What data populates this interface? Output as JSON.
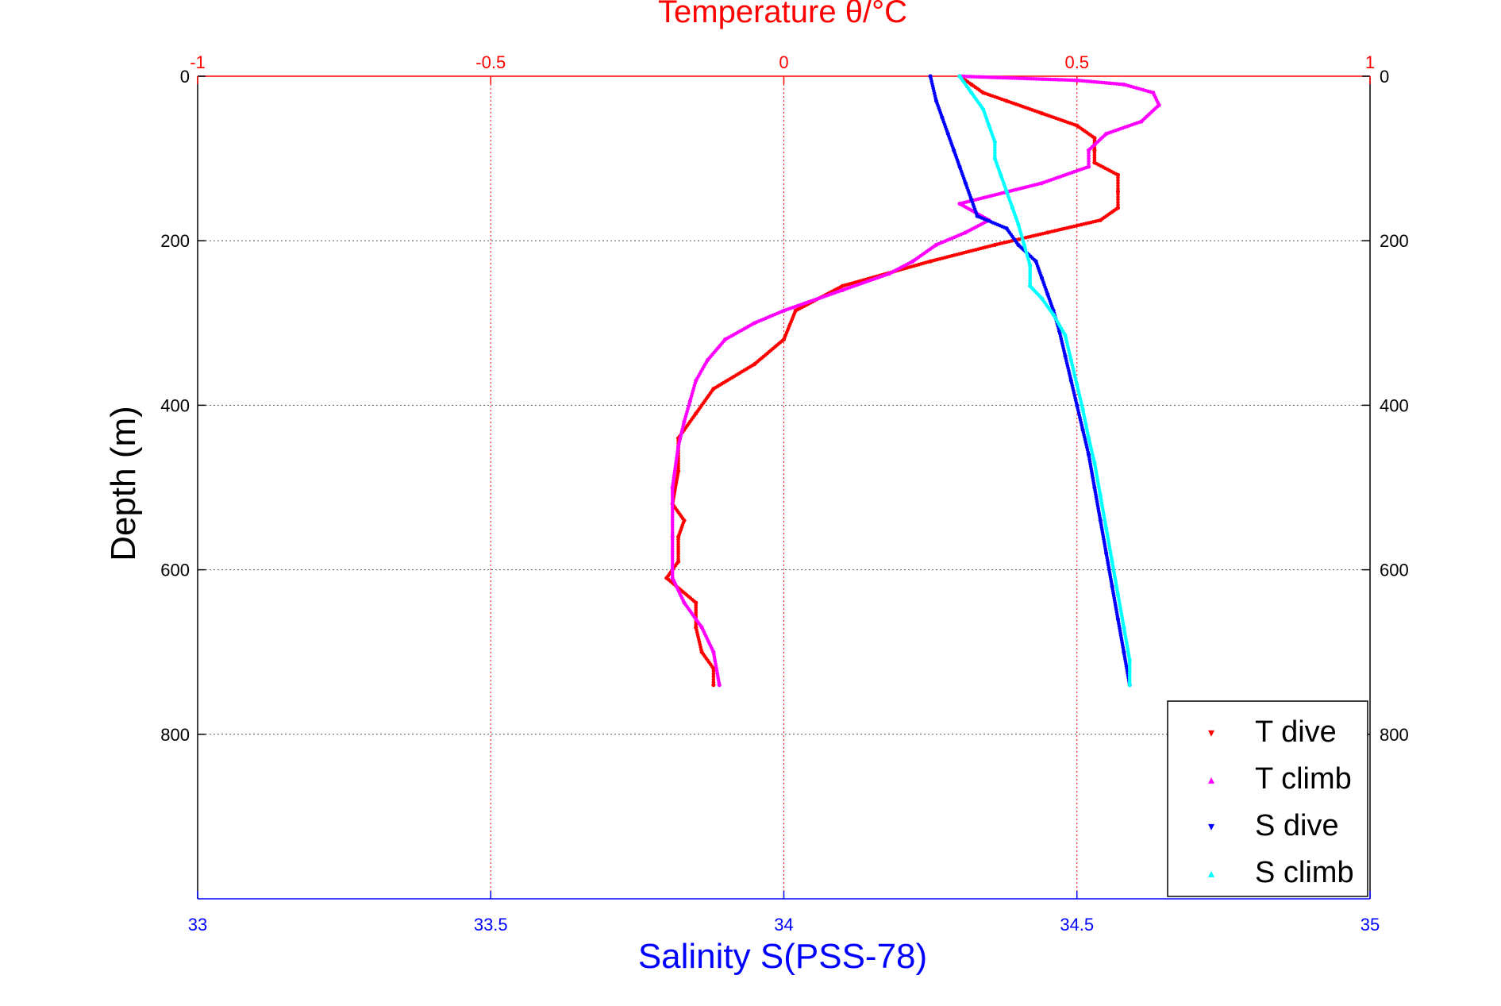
{
  "chart_data": {
    "type": "scatter",
    "title": "Temperature θ/°C",
    "xlabel": "Salinity S(PSS-78)",
    "ylabel": "Depth (m)",
    "grid": true,
    "legend_position": "bottom-right",
    "axes": {
      "depth": {
        "range": [
          0,
          1000
        ],
        "reversed": true,
        "ticks": [
          0,
          200,
          400,
          600,
          800
        ],
        "tick_labels": [
          "0",
          "200",
          "400",
          "600",
          "800"
        ]
      },
      "temperature": {
        "range": [
          -1,
          1
        ],
        "position": "top",
        "ticks": [
          -1,
          -0.5,
          0,
          0.5,
          1
        ],
        "tick_labels": [
          "-1",
          "-0.5",
          "0",
          "0.5",
          "1"
        ]
      },
      "salinity": {
        "range": [
          33,
          35
        ],
        "position": "bottom",
        "ticks": [
          33,
          33.5,
          34,
          34.5,
          35
        ],
        "tick_labels": [
          "33",
          "33.5",
          "34",
          "34.5",
          "35"
        ]
      }
    },
    "colors": {
      "temperature_axis": "#ff0000",
      "salinity_axis": "#0000ff",
      "frame": "#000000",
      "grid": "#555555"
    },
    "series": [
      {
        "name": "T dive",
        "axis": "temperature",
        "marker": "▾",
        "color": "#ff0000",
        "points": [
          [
            0.3,
            0
          ],
          [
            0.32,
            10
          ],
          [
            0.34,
            20
          ],
          [
            0.38,
            30
          ],
          [
            0.44,
            45
          ],
          [
            0.5,
            60
          ],
          [
            0.53,
            75
          ],
          [
            0.53,
            90
          ],
          [
            0.53,
            105
          ],
          [
            0.57,
            120
          ],
          [
            0.57,
            140
          ],
          [
            0.57,
            160
          ],
          [
            0.54,
            175
          ],
          [
            0.45,
            190
          ],
          [
            0.36,
            205
          ],
          [
            0.25,
            225
          ],
          [
            0.1,
            255
          ],
          [
            0.02,
            285
          ],
          [
            0.0,
            320
          ],
          [
            -0.05,
            350
          ],
          [
            -0.12,
            380
          ],
          [
            -0.15,
            410
          ],
          [
            -0.18,
            440
          ],
          [
            -0.18,
            480
          ],
          [
            -0.19,
            520
          ],
          [
            -0.17,
            540
          ],
          [
            -0.18,
            560
          ],
          [
            -0.18,
            590
          ],
          [
            -0.2,
            610
          ],
          [
            -0.15,
            640
          ],
          [
            -0.15,
            670
          ],
          [
            -0.14,
            700
          ],
          [
            -0.12,
            720
          ],
          [
            -0.12,
            740
          ]
        ]
      },
      {
        "name": "T climb",
        "axis": "temperature",
        "marker": "▴",
        "color": "#ff00ff",
        "points": [
          [
            0.3,
            0
          ],
          [
            0.5,
            5
          ],
          [
            0.58,
            10
          ],
          [
            0.63,
            20
          ],
          [
            0.64,
            35
          ],
          [
            0.61,
            55
          ],
          [
            0.55,
            70
          ],
          [
            0.52,
            90
          ],
          [
            0.52,
            110
          ],
          [
            0.44,
            130
          ],
          [
            0.3,
            155
          ],
          [
            0.35,
            175
          ],
          [
            0.31,
            190
          ],
          [
            0.26,
            205
          ],
          [
            0.22,
            225
          ],
          [
            0.18,
            240
          ],
          [
            0.1,
            260
          ],
          [
            0.0,
            285
          ],
          [
            -0.05,
            300
          ],
          [
            -0.1,
            320
          ],
          [
            -0.13,
            345
          ],
          [
            -0.15,
            370
          ],
          [
            -0.16,
            395
          ],
          [
            -0.17,
            420
          ],
          [
            -0.18,
            450
          ],
          [
            -0.19,
            500
          ],
          [
            -0.19,
            560
          ],
          [
            -0.19,
            610
          ],
          [
            -0.17,
            640
          ],
          [
            -0.14,
            670
          ],
          [
            -0.12,
            700
          ],
          [
            -0.11,
            740
          ]
        ]
      },
      {
        "name": "S dive",
        "axis": "salinity",
        "marker": "▾",
        "color": "#0000ff",
        "points": [
          [
            34.25,
            0
          ],
          [
            34.26,
            30
          ],
          [
            34.27,
            50
          ],
          [
            34.28,
            70
          ],
          [
            34.29,
            90
          ],
          [
            34.3,
            110
          ],
          [
            34.31,
            130
          ],
          [
            34.32,
            150
          ],
          [
            34.33,
            170
          ],
          [
            34.38,
            185
          ],
          [
            34.4,
            205
          ],
          [
            34.43,
            225
          ],
          [
            34.44,
            245
          ],
          [
            34.45,
            265
          ],
          [
            34.46,
            285
          ],
          [
            34.47,
            310
          ],
          [
            34.48,
            340
          ],
          [
            34.49,
            370
          ],
          [
            34.5,
            400
          ],
          [
            34.51,
            430
          ],
          [
            34.52,
            460
          ],
          [
            34.53,
            500
          ],
          [
            34.54,
            540
          ],
          [
            34.55,
            580
          ],
          [
            34.56,
            620
          ],
          [
            34.57,
            660
          ],
          [
            34.58,
            700
          ],
          [
            34.59,
            740
          ]
        ]
      },
      {
        "name": "S climb",
        "axis": "salinity",
        "marker": "▴",
        "color": "#00ffff",
        "points": [
          [
            34.3,
            0
          ],
          [
            34.32,
            20
          ],
          [
            34.34,
            40
          ],
          [
            34.35,
            60
          ],
          [
            34.36,
            80
          ],
          [
            34.36,
            100
          ],
          [
            34.37,
            120
          ],
          [
            34.38,
            140
          ],
          [
            34.39,
            160
          ],
          [
            34.4,
            180
          ],
          [
            34.41,
            205
          ],
          [
            34.42,
            230
          ],
          [
            34.42,
            255
          ],
          [
            34.44,
            270
          ],
          [
            34.46,
            290
          ],
          [
            34.48,
            315
          ],
          [
            34.49,
            345
          ],
          [
            34.5,
            375
          ],
          [
            34.51,
            405
          ],
          [
            34.52,
            440
          ],
          [
            34.53,
            470
          ],
          [
            34.54,
            510
          ],
          [
            34.55,
            550
          ],
          [
            34.56,
            590
          ],
          [
            34.57,
            630
          ],
          [
            34.58,
            670
          ],
          [
            34.59,
            710
          ],
          [
            34.59,
            740
          ]
        ]
      }
    ]
  }
}
